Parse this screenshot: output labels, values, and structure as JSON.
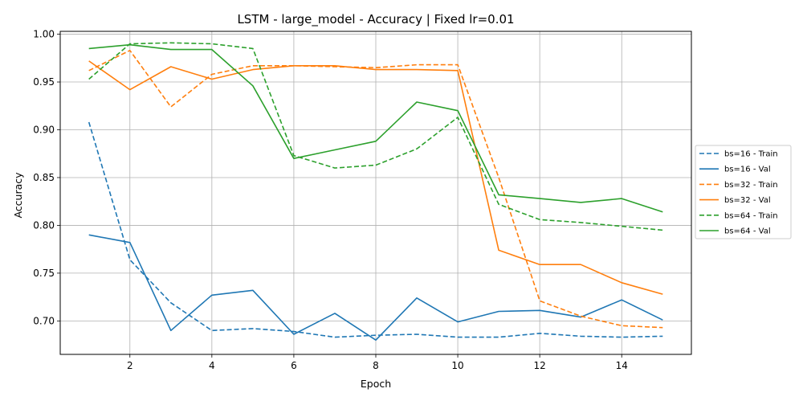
{
  "chart_data": {
    "type": "line",
    "title": "LSTM - large_model - Accuracy | Fixed lr=0.01",
    "xlabel": "Epoch",
    "ylabel": "Accuracy",
    "x": [
      1,
      2,
      3,
      4,
      5,
      6,
      7,
      8,
      9,
      10,
      11,
      12,
      13,
      14,
      15
    ],
    "xlim": [
      0.3,
      15.7
    ],
    "ylim": [
      0.665,
      1.003
    ],
    "xticks": [
      2,
      4,
      6,
      8,
      10,
      12,
      14
    ],
    "xtick_labels": [
      "2",
      "4",
      "6",
      "8",
      "10",
      "12",
      "14"
    ],
    "yticks": [
      0.7,
      0.75,
      0.8,
      0.85,
      0.9,
      0.95,
      1.0
    ],
    "ytick_labels": [
      "0.70",
      "0.75",
      "0.80",
      "0.85",
      "0.90",
      "0.95",
      "1.00"
    ],
    "grid": true,
    "legend_position": "right, outside plot area",
    "series": [
      {
        "name": "bs=16 - Train",
        "color": "#1f77b4",
        "style": "dashed",
        "values": [
          0.908,
          0.764,
          0.719,
          0.69,
          0.692,
          0.689,
          0.683,
          0.685,
          0.686,
          0.683,
          0.683,
          0.687,
          0.684,
          0.683,
          0.684
        ]
      },
      {
        "name": "bs=16 - Val",
        "color": "#1f77b4",
        "style": "solid",
        "values": [
          0.79,
          0.782,
          0.69,
          0.727,
          0.732,
          0.686,
          0.708,
          0.68,
          0.724,
          0.699,
          0.71,
          0.711,
          0.704,
          0.722,
          0.701
        ]
      },
      {
        "name": "bs=32 - Train",
        "color": "#ff7f0e",
        "style": "dashed",
        "values": [
          0.962,
          0.983,
          0.924,
          0.958,
          0.967,
          0.967,
          0.966,
          0.965,
          0.968,
          0.968,
          0.85,
          0.721,
          0.705,
          0.695,
          0.693
        ]
      },
      {
        "name": "bs=32 - Val",
        "color": "#ff7f0e",
        "style": "solid",
        "values": [
          0.972,
          0.942,
          0.966,
          0.953,
          0.963,
          0.967,
          0.967,
          0.963,
          0.963,
          0.962,
          0.774,
          0.759,
          0.759,
          0.74,
          0.728
        ]
      },
      {
        "name": "bs=64 - Train",
        "color": "#2ca02c",
        "style": "dashed",
        "values": [
          0.953,
          0.99,
          0.991,
          0.99,
          0.985,
          0.873,
          0.86,
          0.863,
          0.88,
          0.913,
          0.822,
          0.806,
          0.803,
          0.799,
          0.795
        ]
      },
      {
        "name": "bs=64 - Val",
        "color": "#2ca02c",
        "style": "solid",
        "values": [
          0.985,
          0.989,
          0.984,
          0.984,
          0.946,
          0.87,
          0.879,
          0.888,
          0.929,
          0.92,
          0.832,
          0.828,
          0.824,
          0.828,
          0.814
        ]
      }
    ]
  }
}
